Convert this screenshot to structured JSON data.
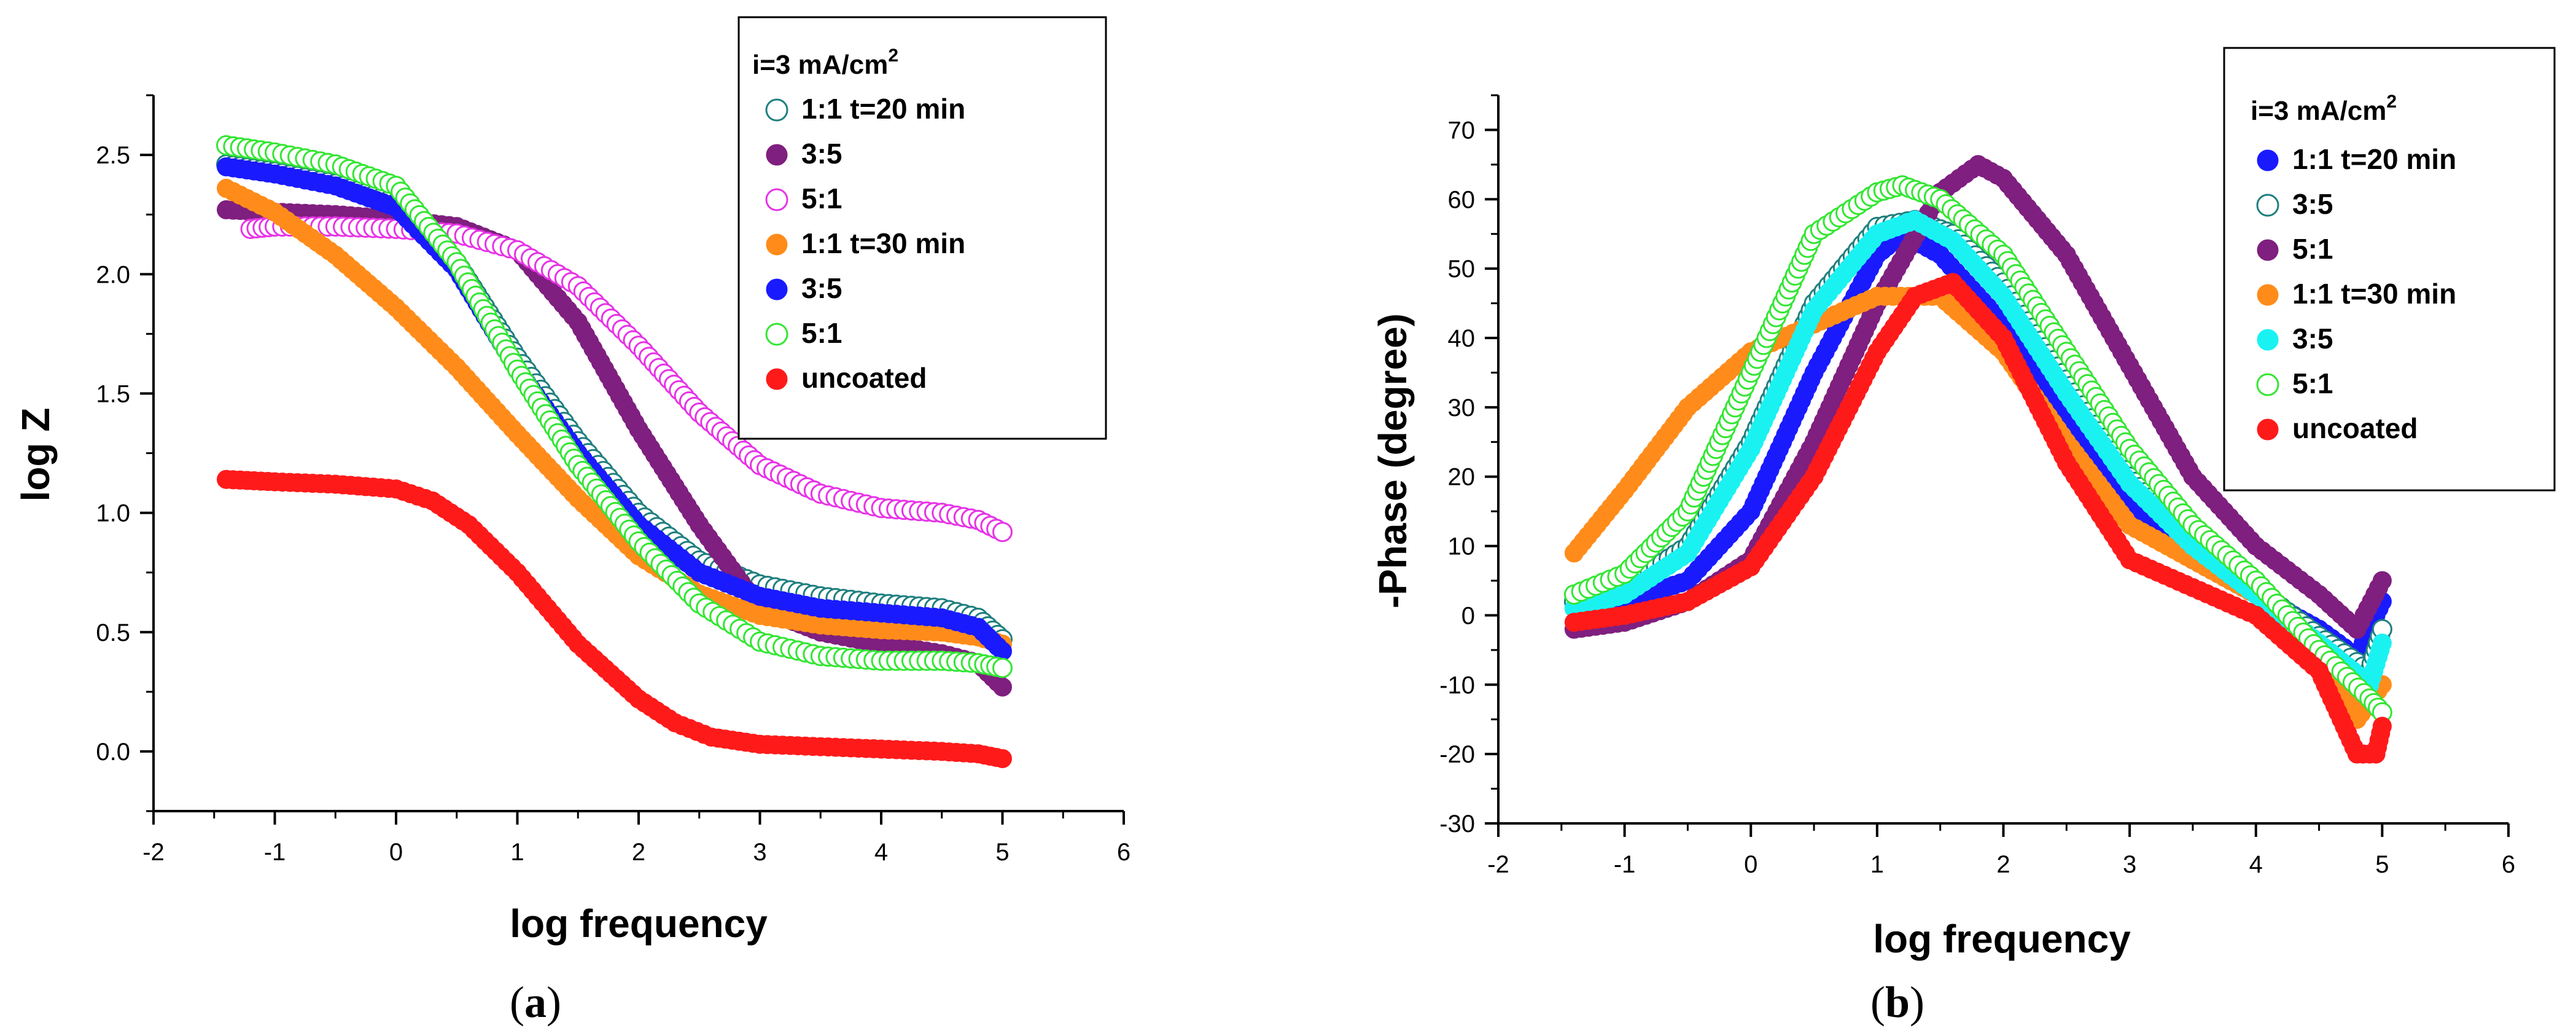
{
  "colors": {
    "teal": "#1F7F7F",
    "purple": "#7F1F7F",
    "magenta": "#E733E7",
    "orange": "#FF8C1A",
    "blue": "#1A1AFF",
    "green": "#33E633",
    "cyan": "#1AF2F2",
    "red": "#FF1A1A"
  },
  "chart_data": [
    {
      "panel": "a",
      "caption": {
        "open": "(",
        "letter": "a",
        "close": ")"
      },
      "type": "scatter",
      "xlabel": "log frequency",
      "ylabel": "log Z",
      "xlim": [
        -2,
        6
      ],
      "ylim": [
        -0.25,
        2.75
      ],
      "xticks": [
        -2,
        -1,
        0,
        1,
        2,
        3,
        4,
        5,
        6
      ],
      "xtick_labels": [
        "-2",
        "-1",
        "0",
        "1",
        "2",
        "3",
        "4",
        "5",
        "6"
      ],
      "yticks": [
        0.0,
        0.5,
        1.0,
        1.5,
        2.0,
        2.5
      ],
      "ytick_labels": [
        "0.0",
        "0.5",
        "1.0",
        "1.5",
        "2.0",
        "2.5"
      ],
      "legend": {
        "title": "i=3 mA/cm",
        "title_sup": "2",
        "placement": "top-right"
      },
      "series": [
        {
          "name": "1:1 t=20 min",
          "color": "teal",
          "filled": false,
          "x": [
            -1.4,
            -1,
            -0.5,
            0,
            0.5,
            1,
            1.5,
            2,
            2.5,
            3,
            3.5,
            4,
            4.5,
            4.8,
            5
          ],
          "y": [
            2.46,
            2.43,
            2.38,
            2.3,
            2.05,
            1.65,
            1.3,
            1.0,
            0.8,
            0.7,
            0.65,
            0.62,
            0.6,
            0.56,
            0.47
          ]
        },
        {
          "name": "3:5",
          "color": "purple",
          "filled": true,
          "x": [
            -1.4,
            -1,
            -0.5,
            0,
            0.5,
            1,
            1.5,
            2,
            2.5,
            3,
            3.5,
            4,
            4.5,
            4.8,
            5
          ],
          "y": [
            2.27,
            2.26,
            2.25,
            2.23,
            2.2,
            2.1,
            1.8,
            1.35,
            0.95,
            0.6,
            0.5,
            0.45,
            0.41,
            0.37,
            0.27
          ]
        },
        {
          "name": "5:1",
          "color": "magenta",
          "filled": false,
          "x": [
            -1.2,
            -1,
            -0.5,
            0,
            0.5,
            1,
            1.5,
            2,
            2.5,
            3,
            3.5,
            4,
            4.5,
            4.8,
            5
          ],
          "y": [
            2.19,
            2.2,
            2.2,
            2.19,
            2.17,
            2.1,
            1.95,
            1.7,
            1.42,
            1.2,
            1.08,
            1.02,
            1.0,
            0.97,
            0.92
          ]
        },
        {
          "name": "1:1 t=30 min",
          "color": "orange",
          "filled": true,
          "x": [
            -1.4,
            -1,
            -0.5,
            0,
            0.5,
            1,
            1.5,
            2,
            2.5,
            3,
            3.5,
            4,
            4.5,
            4.8,
            5
          ],
          "y": [
            2.36,
            2.26,
            2.08,
            1.86,
            1.61,
            1.33,
            1.06,
            0.82,
            0.66,
            0.57,
            0.53,
            0.51,
            0.5,
            0.48,
            0.45
          ]
        },
        {
          "name": "3:5",
          "color": "blue",
          "filled": true,
          "x": [
            -1.4,
            -1,
            -0.5,
            0,
            0.5,
            1,
            1.5,
            2,
            2.5,
            3,
            3.5,
            4,
            4.5,
            4.8,
            5
          ],
          "y": [
            2.45,
            2.42,
            2.37,
            2.28,
            2.02,
            1.6,
            1.25,
            0.95,
            0.75,
            0.65,
            0.6,
            0.58,
            0.56,
            0.52,
            0.42
          ]
        },
        {
          "name": "5:1",
          "color": "green",
          "filled": false,
          "x": [
            -1.4,
            -1,
            -0.5,
            0,
            0.5,
            1,
            1.5,
            2,
            2.5,
            3,
            3.5,
            4,
            4.5,
            4.8,
            5
          ],
          "y": [
            2.54,
            2.51,
            2.46,
            2.37,
            2.05,
            1.6,
            1.2,
            0.88,
            0.62,
            0.46,
            0.4,
            0.38,
            0.38,
            0.37,
            0.35
          ]
        },
        {
          "name": "uncoated",
          "color": "red",
          "filled": true,
          "x": [
            -1.4,
            -1,
            -0.5,
            0,
            0.3,
            0.6,
            1,
            1.5,
            2,
            2.3,
            2.6,
            3,
            3.5,
            4,
            4.5,
            4.8,
            5
          ],
          "y": [
            1.14,
            1.13,
            1.12,
            1.1,
            1.05,
            0.95,
            0.75,
            0.45,
            0.22,
            0.12,
            0.06,
            0.03,
            0.02,
            0.01,
            0.0,
            -0.01,
            -0.03
          ]
        }
      ]
    },
    {
      "panel": "b",
      "caption": {
        "open": "(",
        "letter": "b",
        "close": ")"
      },
      "type": "scatter",
      "xlabel": "log frequency",
      "ylabel": "-Phase (degree)",
      "xlim": [
        -2,
        6
      ],
      "ylim": [
        -30,
        75
      ],
      "xticks": [
        -2,
        -1,
        0,
        1,
        2,
        3,
        4,
        5,
        6
      ],
      "xtick_labels": [
        "-2",
        "-1",
        "0",
        "1",
        "2",
        "3",
        "4",
        "5",
        "6"
      ],
      "yticks": [
        -30,
        -20,
        -10,
        0,
        10,
        20,
        30,
        40,
        50,
        60,
        70
      ],
      "ytick_labels": [
        "-30",
        "-20",
        "-10",
        "0",
        "10",
        "20",
        "30",
        "40",
        "50",
        "60",
        "70"
      ],
      "legend": {
        "title": "i=3 mA/cm",
        "title_sup": "2",
        "placement": "top-right"
      },
      "series": [
        {
          "name": "1:1 t=20 min",
          "color": "blue",
          "filled": true,
          "x": [
            -1.4,
            -1,
            -0.5,
            0,
            0.5,
            1,
            1.2,
            1.5,
            2,
            2.5,
            3,
            3.5,
            4,
            4.5,
            4.8,
            5
          ],
          "y": [
            1,
            2,
            5,
            15,
            35,
            52,
            55,
            52,
            42,
            28,
            16,
            8,
            3,
            -2,
            -6,
            2
          ]
        },
        {
          "name": "3:5",
          "color": "teal",
          "filled": false,
          "x": [
            -1.4,
            -1,
            -0.5,
            0,
            0.5,
            1,
            1.3,
            1.6,
            2,
            2.5,
            3,
            3.5,
            4,
            4.5,
            4.9,
            5
          ],
          "y": [
            2,
            4,
            10,
            25,
            45,
            56,
            57,
            55,
            48,
            34,
            20,
            11,
            4,
            -3,
            -8,
            -2
          ]
        },
        {
          "name": "5:1",
          "color": "purple",
          "filled": true,
          "x": [
            -1.4,
            -1,
            -0.5,
            0,
            0.5,
            1,
            1.5,
            1.8,
            2,
            2.5,
            3,
            3.5,
            4,
            4.5,
            4.8,
            5
          ],
          "y": [
            -2,
            -1,
            2,
            8,
            25,
            45,
            61,
            65,
            63,
            52,
            36,
            20,
            10,
            3,
            -2,
            5
          ]
        },
        {
          "name": "1:1 t=30 min",
          "color": "orange",
          "filled": true,
          "x": [
            -1.4,
            -1,
            -0.5,
            0,
            0.5,
            1,
            1.5,
            2,
            2.5,
            3,
            3.5,
            4,
            4.5,
            4.8,
            5
          ],
          "y": [
            9,
            18,
            30,
            38,
            42,
            46,
            46,
            38,
            25,
            13,
            8,
            3,
            -5,
            -15,
            -10
          ]
        },
        {
          "name": "3:5",
          "color": "cyan",
          "filled": true,
          "x": [
            -1.4,
            -1,
            -0.5,
            0,
            0.5,
            1,
            1.3,
            1.6,
            2,
            2.5,
            3,
            3.5,
            4,
            4.5,
            4.9,
            5
          ],
          "y": [
            1,
            3,
            9,
            24,
            44,
            55,
            57,
            54,
            46,
            32,
            19,
            10,
            3,
            -4,
            -10,
            -4
          ]
        },
        {
          "name": "5:1",
          "color": "green",
          "filled": false,
          "x": [
            -1.4,
            -1,
            -0.5,
            0,
            0.5,
            1,
            1.2,
            1.5,
            2,
            2.5,
            3,
            3.5,
            4,
            4.5,
            4.9,
            5
          ],
          "y": [
            3,
            6,
            15,
            35,
            55,
            61,
            62,
            60,
            52,
            38,
            24,
            13,
            5,
            -5,
            -12,
            -14
          ]
        },
        {
          "name": "uncoated",
          "color": "red",
          "filled": true,
          "x": [
            -1.4,
            -1,
            -0.5,
            0,
            0.5,
            1,
            1.3,
            1.6,
            2,
            2.5,
            3,
            3.5,
            4,
            4.5,
            4.8,
            4.95,
            5
          ],
          "y": [
            -1,
            0,
            2,
            7,
            20,
            38,
            46,
            48,
            40,
            22,
            8,
            4,
            0,
            -8,
            -20,
            -20,
            -16
          ]
        }
      ]
    }
  ]
}
